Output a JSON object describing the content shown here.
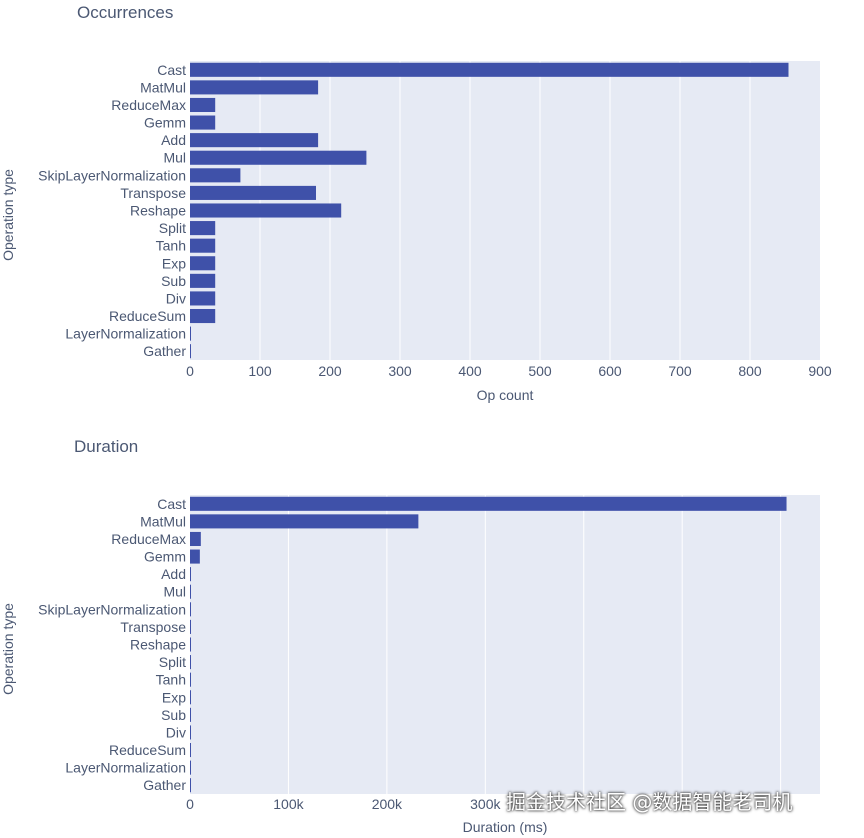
{
  "chart_data": [
    {
      "type": "bar",
      "orientation": "horizontal",
      "title": "Occurrences",
      "xlabel": "Op count",
      "ylabel": "Operation type",
      "xlim": [
        0,
        900
      ],
      "xticks": [
        0,
        100,
        200,
        300,
        400,
        500,
        600,
        700,
        800,
        900
      ],
      "xtick_labels": [
        "0",
        "100",
        "200",
        "300",
        "400",
        "500",
        "600",
        "700",
        "800",
        "900"
      ],
      "grid": true,
      "bar_color": "#3f51a9",
      "categories": [
        "Cast",
        "MatMul",
        "ReduceMax",
        "Gemm",
        "Add",
        "Mul",
        "SkipLayerNormalization",
        "Transpose",
        "Reshape",
        "Split",
        "Tanh",
        "Exp",
        "Sub",
        "Div",
        "ReduceSum",
        "LayerNormalization",
        "Gather"
      ],
      "values": [
        855,
        183,
        36,
        36,
        183,
        252,
        72,
        180,
        216,
        36,
        36,
        36,
        36,
        36,
        36,
        1,
        1
      ]
    },
    {
      "type": "bar",
      "orientation": "horizontal",
      "title": "Duration",
      "xlabel": "Duration (ms)",
      "ylabel": "Operation type",
      "xlim": [
        0,
        640000
      ],
      "xticks": [
        0,
        100000,
        200000,
        300000
      ],
      "xtick_labels": [
        "0",
        "100k",
        "200k",
        "300k"
      ],
      "grid": true,
      "bar_color": "#3f51a9",
      "categories": [
        "Cast",
        "MatMul",
        "ReduceMax",
        "Gemm",
        "Add",
        "Mul",
        "SkipLayerNormalization",
        "Transpose",
        "Reshape",
        "Split",
        "Tanh",
        "Exp",
        "Sub",
        "Div",
        "ReduceSum",
        "LayerNormalization",
        "Gather"
      ],
      "values": [
        606000,
        232000,
        11000,
        10000,
        1000,
        800,
        800,
        600,
        500,
        400,
        300,
        300,
        300,
        300,
        300,
        200,
        200
      ]
    }
  ],
  "watermark": "掘金技术社区 @数据智能老司机"
}
